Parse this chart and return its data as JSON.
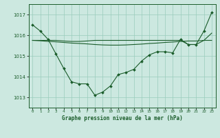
{
  "title": "Graphe pression niveau de la mer (hPa)",
  "background_color": "#cce8e0",
  "grid_color": "#99ccbb",
  "line_color": "#1a5c2a",
  "marker_color": "#1a5c2a",
  "xlim": [
    -0.5,
    23.5
  ],
  "ylim": [
    1012.5,
    1017.5
  ],
  "yticks": [
    1013,
    1014,
    1015,
    1016,
    1017
  ],
  "xtick_labels": [
    "0",
    "1",
    "2",
    "3",
    "4",
    "5",
    "6",
    "7",
    "8",
    "9",
    "10",
    "11",
    "12",
    "13",
    "14",
    "15",
    "16",
    "17",
    "18",
    "19",
    "20",
    "21",
    "22",
    "23"
  ],
  "series1": [
    1016.5,
    1016.2,
    1015.8,
    1015.1,
    1014.4,
    1013.75,
    1013.65,
    1013.65,
    1013.1,
    1013.25,
    1013.55,
    1014.1,
    1014.2,
    1014.35,
    1014.75,
    1015.05,
    1015.2,
    1015.2,
    1015.15,
    1015.8,
    1015.55,
    1015.55,
    1016.2,
    1017.1
  ],
  "series2": [
    1015.75,
    1015.75,
    1015.75,
    1015.75,
    1015.72,
    1015.7,
    1015.7,
    1015.72,
    1015.75,
    1015.75,
    1015.75,
    1015.75,
    1015.75,
    1015.75,
    1015.75,
    1015.75,
    1015.75,
    1015.75,
    1015.75,
    1015.75,
    1015.55,
    1015.55,
    1015.75,
    1015.75
  ],
  "series3": [
    1015.75,
    1015.73,
    1015.7,
    1015.68,
    1015.65,
    1015.62,
    1015.6,
    1015.58,
    1015.55,
    1015.53,
    1015.52,
    1015.52,
    1015.53,
    1015.55,
    1015.57,
    1015.6,
    1015.62,
    1015.65,
    1015.67,
    1015.7,
    1015.72,
    1015.72,
    1015.75,
    1016.1
  ]
}
